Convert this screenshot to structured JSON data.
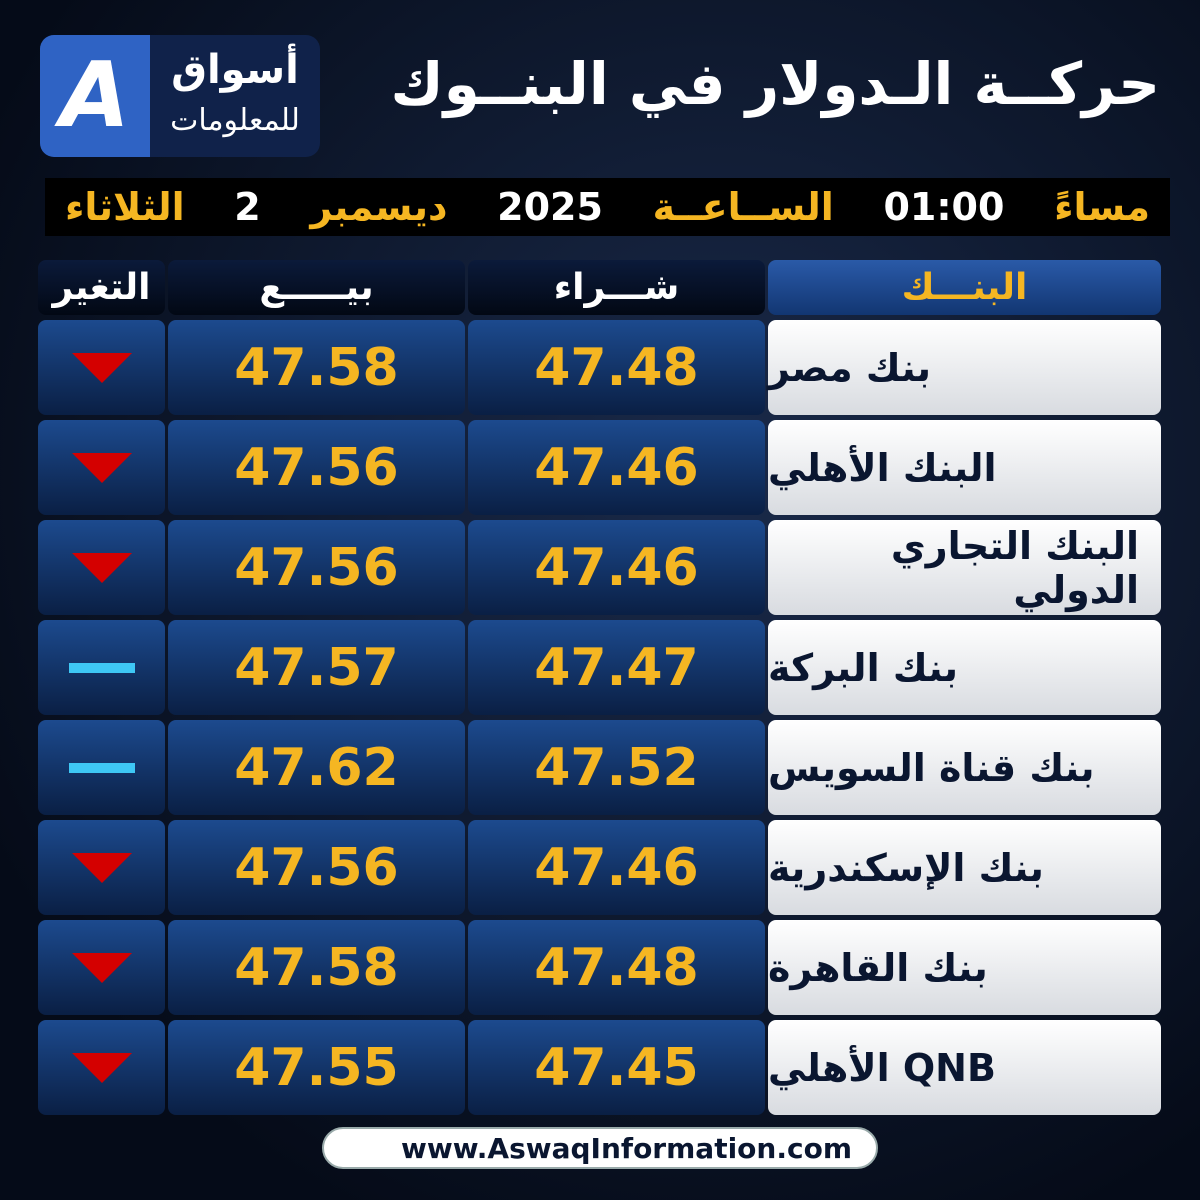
{
  "logo": {
    "line1": "أسواق",
    "line2": "للمعلومات"
  },
  "header": {
    "title": "حركــة الـدولار في البنــوك"
  },
  "date": {
    "day": "الثلاثاء",
    "date": "2",
    "month": "ديسمبر",
    "year": "2025",
    "time_label": "الســاعــة",
    "time": "01:00",
    "period": "مساءً"
  },
  "table": {
    "columns": [
      "البنـــك",
      "شـــراء",
      "بيـــــع",
      "التغير"
    ],
    "rows": [
      {
        "bank": "بنك مصر",
        "buy": 47.48,
        "sell": 47.58,
        "change": "down"
      },
      {
        "bank": "البنك الأهلي",
        "buy": 47.46,
        "sell": 47.56,
        "change": "down"
      },
      {
        "bank": "البنك التجاري الدولي",
        "buy": 47.46,
        "sell": 47.56,
        "change": "down"
      },
      {
        "bank": "بنك البركة",
        "buy": 47.47,
        "sell": 47.57,
        "change": "none"
      },
      {
        "bank": "بنك قناة السويس",
        "buy": 47.52,
        "sell": 47.62,
        "change": "none"
      },
      {
        "bank": "بنك الإسكندرية",
        "buy": 47.46,
        "sell": 47.56,
        "change": "down"
      },
      {
        "bank": "بنك القاهرة",
        "buy": 47.48,
        "sell": 47.58,
        "change": "down"
      },
      {
        "bank": "QNB الأهلي",
        "buy": 47.45,
        "sell": 47.55,
        "change": "down"
      }
    ]
  },
  "footer": {
    "url": "www.AswaqInformation.com"
  }
}
